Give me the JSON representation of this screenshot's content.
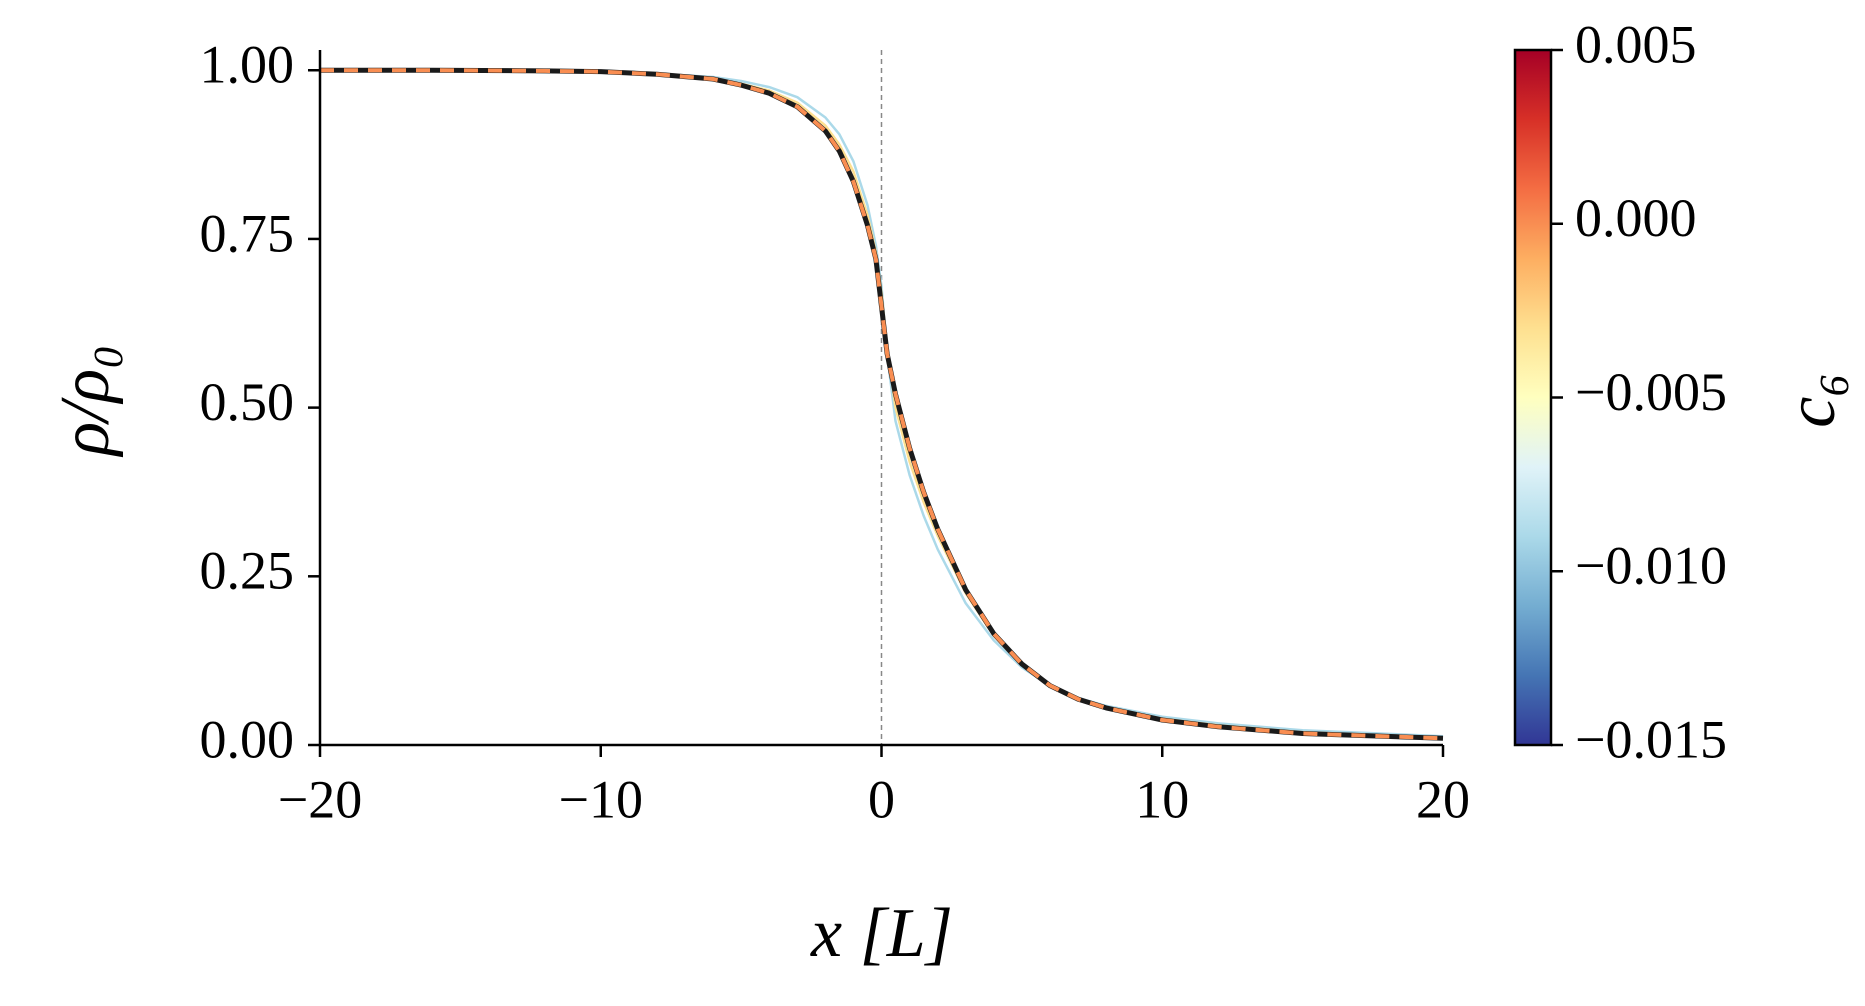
{
  "chart_data": {
    "type": "line",
    "xlabel": "x [L]",
    "ylabel": "ρ/ρ₀",
    "x": [
      -20,
      -16,
      -12,
      -10,
      -8,
      -6,
      -5,
      -4,
      -3,
      -2,
      -1.5,
      -1,
      -0.5,
      -0.2,
      0,
      0.2,
      0.5,
      1,
      1.5,
      2,
      3,
      4,
      5,
      6,
      7,
      8,
      10,
      12,
      15,
      20
    ],
    "series": [
      {
        "color": "#abd9e9",
        "style": "solid",
        "values": [
          1.0,
          1.0,
          0.999,
          0.998,
          0.995,
          0.99,
          0.984,
          0.975,
          0.96,
          0.93,
          0.905,
          0.865,
          0.8,
          0.74,
          0.68,
          0.58,
          0.48,
          0.4,
          0.34,
          0.29,
          0.21,
          0.155,
          0.115,
          0.088,
          0.07,
          0.058,
          0.042,
          0.032,
          0.022,
          0.013
        ]
      },
      {
        "color": "#fee090",
        "style": "solid",
        "values": [
          1.0,
          1.0,
          0.999,
          0.998,
          0.994,
          0.988,
          0.98,
          0.97,
          0.952,
          0.918,
          0.89,
          0.85,
          0.785,
          0.73,
          0.67,
          0.59,
          0.5,
          0.42,
          0.36,
          0.31,
          0.225,
          0.162,
          0.118,
          0.088,
          0.069,
          0.056,
          0.039,
          0.029,
          0.019,
          0.011
        ]
      },
      {
        "color": "#1a1a1a",
        "style": "solid",
        "values": [
          1.0,
          1.0,
          0.999,
          0.998,
          0.994,
          0.987,
          0.978,
          0.966,
          0.946,
          0.91,
          0.88,
          0.835,
          0.77,
          0.72,
          0.65,
          0.58,
          0.52,
          0.44,
          0.375,
          0.32,
          0.23,
          0.165,
          0.12,
          0.088,
          0.068,
          0.055,
          0.037,
          0.027,
          0.017,
          0.01
        ]
      },
      {
        "color": "#f98e52",
        "style": "dashed",
        "values": [
          1.0,
          1.0,
          0.999,
          0.998,
          0.994,
          0.987,
          0.978,
          0.966,
          0.946,
          0.91,
          0.88,
          0.835,
          0.77,
          0.72,
          0.65,
          0.58,
          0.52,
          0.44,
          0.375,
          0.32,
          0.23,
          0.165,
          0.12,
          0.088,
          0.068,
          0.055,
          0.037,
          0.027,
          0.017,
          0.01
        ]
      }
    ],
    "vline": 0,
    "xlim": [
      -20,
      20
    ],
    "xticks": [
      {
        "value": -20,
        "label": "−20"
      },
      {
        "value": -10,
        "label": "−10"
      },
      0,
      10,
      20
    ],
    "ylim": [
      0,
      1.03
    ],
    "yticks": [
      {
        "value": 0,
        "label": "0.00"
      },
      0.25,
      {
        "value": 0.5,
        "label": "0.50"
      },
      0.75,
      {
        "value": 1,
        "label": "1.00"
      }
    ],
    "colorbar": {
      "label": "c₆",
      "lim": [
        -0.015,
        0.005
      ],
      "ticks": [
        {
          "value": -0.015,
          "label": "−0.015"
        },
        {
          "value": -0.01,
          "label": "−0.010"
        },
        {
          "value": -0.005,
          "label": "−0.005"
        },
        {
          "value": 0,
          "label": "0.000"
        },
        0.005
      ],
      "colors": [
        "#313695",
        "#4575b4",
        "#74add1",
        "#abd9e9",
        "#e0f3f8",
        "#ffffbf",
        "#fee090",
        "#fdae61",
        "#f46d43",
        "#d73027",
        "#a50026"
      ]
    }
  }
}
